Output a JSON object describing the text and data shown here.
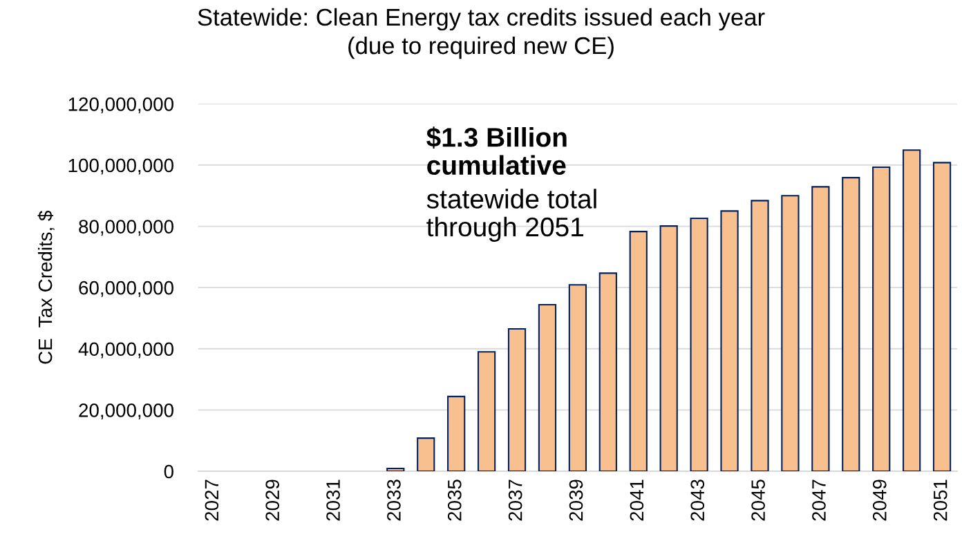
{
  "chart_data": {
    "type": "bar",
    "title": "Statewide: Clean Energy tax credits issued each year\n(due to required new CE)",
    "ylabel": "CE  Tax Credits, $",
    "categories": [
      "2027",
      null,
      "2029",
      null,
      "2031",
      null,
      "2033",
      null,
      "2035",
      null,
      "2037",
      null,
      "2039",
      null,
      "2041",
      null,
      "2043",
      null,
      "2045",
      null,
      "2047",
      null,
      "2049",
      null,
      "2051"
    ],
    "values": [
      0,
      0,
      0,
      0,
      0,
      0,
      900000,
      10800000,
      24400000,
      39000000,
      46500000,
      54400000,
      60900000,
      64700000,
      78300000,
      80100000,
      82600000,
      85000000,
      88400000,
      90000000,
      92900000,
      95900000,
      99300000,
      104900000,
      100800000
    ],
    "color": "#f9c08f",
    "ylim": [
      0,
      120000000
    ],
    "yticks": [
      {
        "value": 0,
        "label": "0"
      },
      {
        "value": 20000000,
        "label": "20,000,000"
      },
      {
        "value": 40000000,
        "label": "40,000,000"
      },
      {
        "value": 60000000,
        "label": "60,000,000"
      },
      {
        "value": 80000000,
        "label": "80,000,000"
      },
      {
        "value": 100000000,
        "label": "100,000,000"
      },
      {
        "value": 120000000,
        "label": "120,000,000"
      }
    ],
    "grid": "y",
    "annotations": [
      "$1.3 Billion\ncumulative",
      "statewide total\nthrough 2051"
    ]
  }
}
